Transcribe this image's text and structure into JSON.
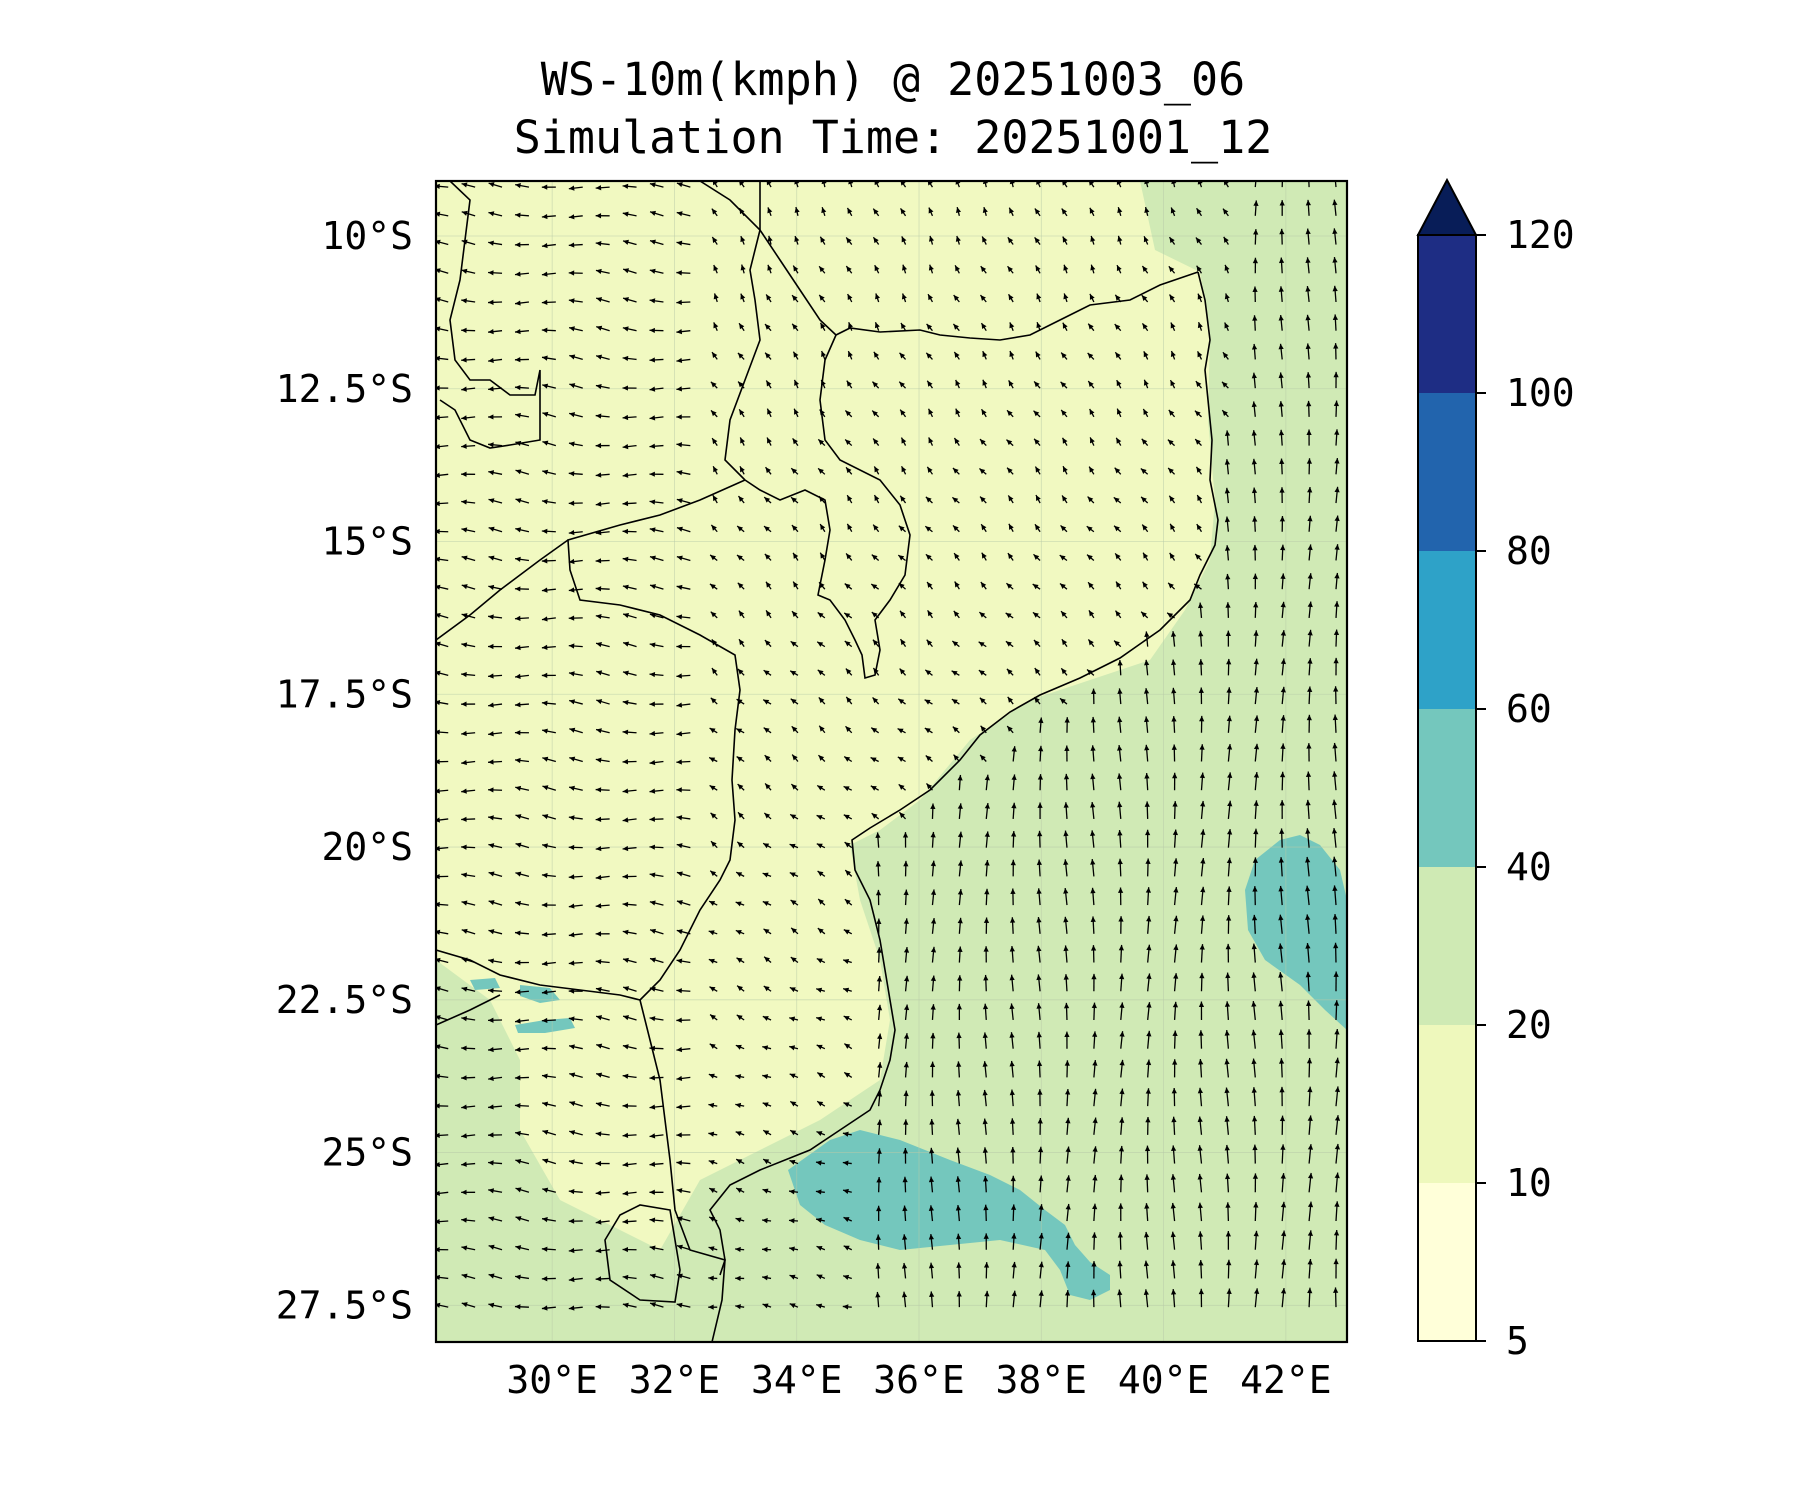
{
  "title": {
    "line1": "WS-10m(kmph) @ 20251003_06",
    "line2": "Simulation Time: 20251001_12"
  },
  "map": {
    "lat_ticks": [
      {
        "lat": -10,
        "label": "10°S"
      },
      {
        "lat": -12.5,
        "label": "12.5°S"
      },
      {
        "lat": -15,
        "label": "15°S"
      },
      {
        "lat": -17.5,
        "label": "17.5°S"
      },
      {
        "lat": -20,
        "label": "20°S"
      },
      {
        "lat": -22.5,
        "label": "22.5°S"
      },
      {
        "lat": -25,
        "label": "25°S"
      },
      {
        "lat": -27.5,
        "label": "27.5°S"
      }
    ],
    "lon_ticks": [
      {
        "lon": 30,
        "label": "30°E"
      },
      {
        "lon": 32,
        "label": "32°E"
      },
      {
        "lon": 34,
        "label": "34°E"
      },
      {
        "lon": 36,
        "label": "36°E"
      },
      {
        "lon": 38,
        "label": "38°E"
      },
      {
        "lon": 40,
        "label": "40°E"
      },
      {
        "lon": 42,
        "label": "42°E"
      }
    ],
    "lon_range": [
      28.1,
      43.0
    ],
    "lat_range": [
      -28.1,
      -9.1
    ],
    "colors": {
      "land_base": "#f1f9c1",
      "sea_base": "#d0eab5",
      "band_20_40": "#cfeab4",
      "band_40_60": "#74c7bd",
      "light": "#f8fcd4"
    }
  },
  "colorbar": {
    "levels": [
      {
        "value": 5,
        "label": "5",
        "color": "#ffffd9"
      },
      {
        "value": 10,
        "label": "10",
        "color": "#eef8bc"
      },
      {
        "value": 20,
        "label": "20",
        "color": "#cfeab4"
      },
      {
        "value": 40,
        "label": "40",
        "color": "#74c7bd"
      },
      {
        "value": 60,
        "label": "60",
        "color": "#2ea2c8"
      },
      {
        "value": 80,
        "label": "80",
        "color": "#2264ad"
      },
      {
        "value": 100,
        "label": "100",
        "color": "#1e2d84"
      },
      {
        "value": 120,
        "label": "120",
        "color": "#081d58"
      }
    ],
    "extend_color": "#081d58"
  }
}
